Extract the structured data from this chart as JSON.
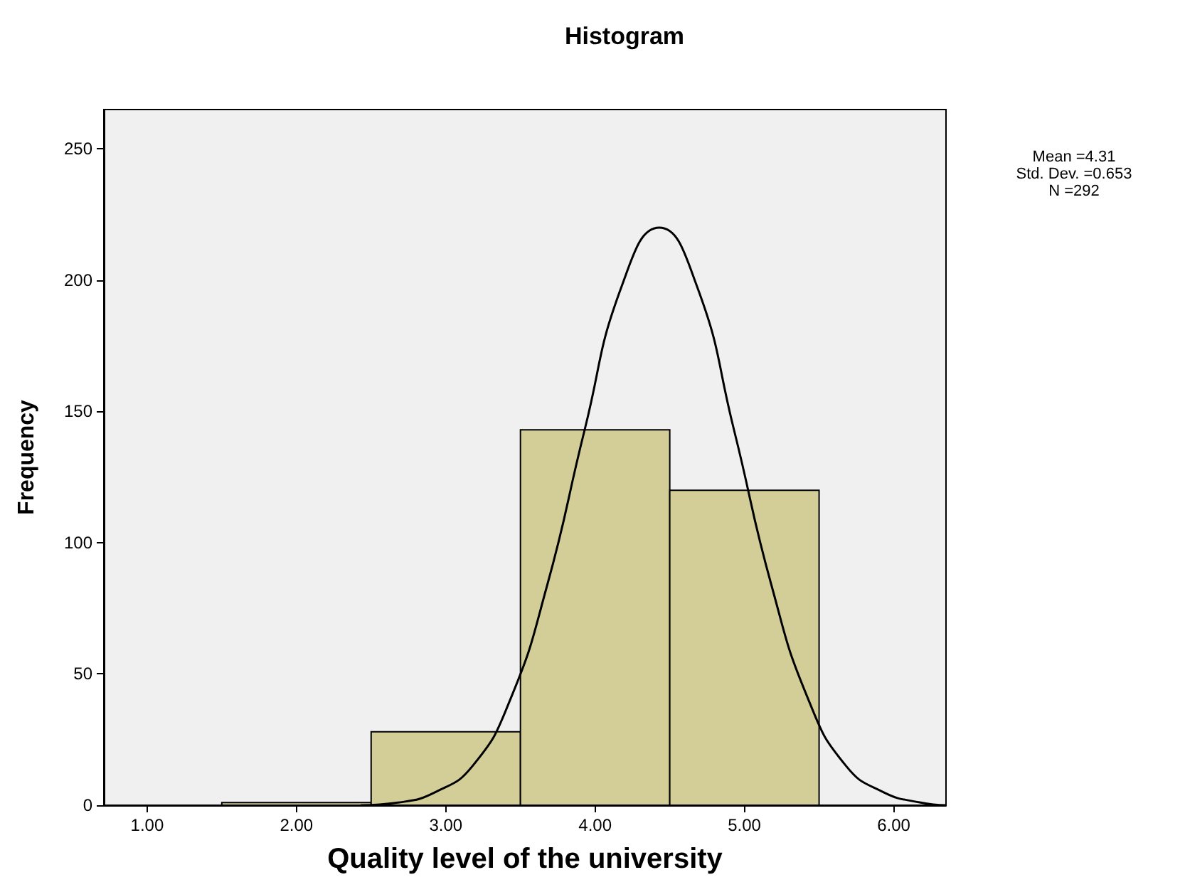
{
  "chart_data": {
    "type": "histogram",
    "title": "Histogram",
    "xlabel": "Quality level of the university",
    "ylabel": "Frequency",
    "annotations": [
      "Mean =4.31",
      "Std. Dev. =0.653",
      "N =292"
    ],
    "bins": [
      1.5,
      2.5,
      3.5,
      4.5,
      5.5
    ],
    "series": [
      {
        "color": "#d3ce97",
        "values": [
          1,
          28,
          143,
          120
        ]
      },
      {
        "type": "line",
        "color": "#000000",
        "marker": "none",
        "x": [
          2.43,
          2.68,
          2.93,
          3.18,
          3.43,
          3.68,
          3.93,
          4.18,
          4.43,
          4.68,
          4.93,
          5.18,
          5.43,
          5.68,
          5.93,
          6.18,
          6.35
        ],
        "values": [
          0,
          1,
          5,
          15,
          40,
          84,
          143,
          198,
          220,
          198,
          143,
          84,
          40,
          15,
          5,
          1,
          0
        ]
      }
    ],
    "xlim": [
      0.71,
      6.35
    ],
    "ylim": [
      0,
      265
    ],
    "xticks": [
      {
        "value": 1,
        "label": "1.00"
      },
      {
        "value": 2,
        "label": "2.00"
      },
      {
        "value": 3,
        "label": "3.00"
      },
      {
        "value": 4,
        "label": "4.00"
      },
      {
        "value": 5,
        "label": "5.00"
      },
      {
        "value": 6,
        "label": "6.00"
      }
    ],
    "yticks": [
      0,
      50,
      100,
      150,
      200,
      250
    ],
    "grid": false
  }
}
